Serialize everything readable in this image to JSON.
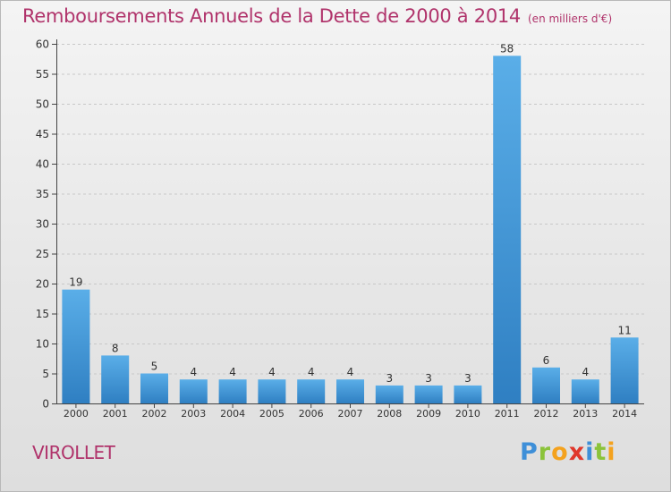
{
  "header": {
    "title": "Remboursements Annuels de la Dette de 2000 à 2014",
    "unit_note": "(en milliers d'€)"
  },
  "footer": {
    "commune": "VIROLLET",
    "brand_letters": [
      "P",
      "r",
      "o",
      "x",
      "i",
      "t",
      "i"
    ]
  },
  "colors": {
    "title": "#b0336b",
    "bar_top": "#5aaee8",
    "bar_bottom": "#2f7fc2",
    "grid": "#c8c8c8"
  },
  "chart_data": {
    "type": "bar",
    "title": "Remboursements Annuels de la Dette de 2000 à 2014",
    "subtitle": "(en milliers d'€)",
    "categories": [
      "2000",
      "2001",
      "2002",
      "2003",
      "2004",
      "2005",
      "2006",
      "2007",
      "2008",
      "2009",
      "2010",
      "2011",
      "2012",
      "2013",
      "2014"
    ],
    "values": [
      19,
      8,
      5,
      4,
      4,
      4,
      4,
      4,
      3,
      3,
      3,
      58,
      6,
      4,
      11
    ],
    "ylim": [
      0,
      60
    ],
    "yticks": [
      0,
      5,
      10,
      15,
      20,
      25,
      30,
      35,
      40,
      45,
      50,
      55,
      60
    ],
    "grid": "horizontal dashed",
    "legend": "none"
  }
}
